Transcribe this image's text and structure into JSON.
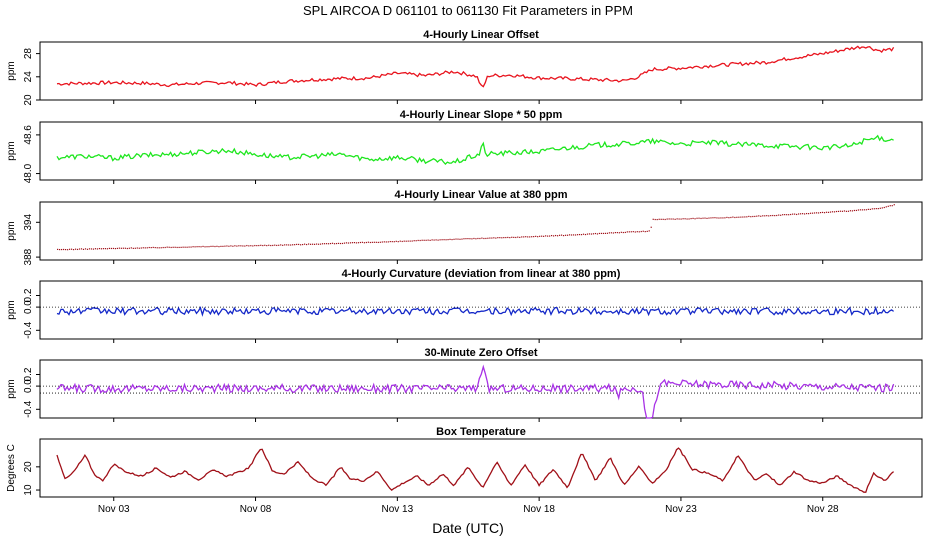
{
  "title": "SPL   AIRCOA D   061101 to 061130   Fit Parameters in PPM",
  "xlabel": "Date (UTC)",
  "colors": {
    "offset": "#e8141e",
    "slope": "#1ee61e",
    "value": "#a01018",
    "curvature": "#1428c8",
    "zero": "#a832e6",
    "temperature": "#a01018"
  },
  "chart_data": [
    {
      "type": "line",
      "title": "4-Hourly Linear Offset",
      "ylabel": "ppm",
      "x_range": [
        -0.6,
        30.5
      ],
      "ylim": [
        20,
        30
      ],
      "yticks": [
        20,
        24,
        28
      ],
      "ytick_labels": [
        "20",
        "24",
        "28"
      ],
      "xticks": [
        2,
        7,
        12,
        17,
        22,
        27
      ],
      "xtick_labels": [
        "Nov 03",
        "Nov 08",
        "Nov 13",
        "Nov 18",
        "Nov 23",
        "Nov 28"
      ],
      "x": [
        0,
        1,
        2,
        3,
        4,
        5,
        6,
        7,
        8,
        9,
        10,
        11,
        12,
        13,
        14,
        14.8,
        15,
        15.2,
        16,
        17,
        18,
        19,
        20,
        20.5,
        21,
        22,
        23,
        24,
        25,
        26,
        27,
        28,
        28.5,
        29,
        29.5
      ],
      "values": [
        22.8,
        22.9,
        23.0,
        22.9,
        22.6,
        22.9,
        23.0,
        22.6,
        23.2,
        23.5,
        23.7,
        23.8,
        24.6,
        24.2,
        24.9,
        24.1,
        21.9,
        24.2,
        24.3,
        23.8,
        23.7,
        23.5,
        23.3,
        24.0,
        25.3,
        25.5,
        25.9,
        26.2,
        26.5,
        27.3,
        28.0,
        28.9,
        29.3,
        28.5,
        28.8
      ],
      "noise": 0.3,
      "style": "line"
    },
    {
      "type": "line",
      "title": "4-Hourly Linear Slope * 50 ppm",
      "ylabel": "ppm",
      "x_range": [
        -0.6,
        30.5
      ],
      "ylim": [
        47.9,
        48.8
      ],
      "yticks": [
        48.0,
        48.6
      ],
      "ytick_labels": [
        "48.0",
        "48.6"
      ],
      "xticks": [
        2,
        7,
        12,
        17,
        22,
        27
      ],
      "xtick_labels": [
        "Nov 03",
        "Nov 08",
        "Nov 13",
        "Nov 18",
        "Nov 23",
        "Nov 28"
      ],
      "x": [
        0,
        1,
        2,
        3,
        4,
        5,
        6,
        7,
        8,
        9,
        10,
        11,
        12,
        13,
        14,
        14.9,
        15,
        15.1,
        16,
        17,
        18,
        19,
        20,
        21,
        22,
        23,
        24,
        25,
        26,
        27,
        28,
        28.5,
        29,
        29.5
      ],
      "values": [
        48.25,
        48.27,
        48.24,
        48.28,
        48.3,
        48.33,
        48.36,
        48.3,
        48.25,
        48.27,
        48.3,
        48.22,
        48.25,
        48.2,
        48.17,
        48.3,
        48.5,
        48.3,
        48.32,
        48.34,
        48.4,
        48.44,
        48.46,
        48.5,
        48.46,
        48.48,
        48.45,
        48.44,
        48.42,
        48.4,
        48.43,
        48.52,
        48.55,
        48.52
      ],
      "noise": 0.04,
      "style": "line"
    },
    {
      "type": "scatter",
      "title": "4-Hourly Linear Value at 380 ppm",
      "ylabel": "ppm",
      "x_range": [
        -0.6,
        30.5
      ],
      "ylim": [
        387.5,
        397.5
      ],
      "yticks": [
        388,
        394
      ],
      "ytick_labels": [
        "388",
        "394"
      ],
      "xticks": [
        2,
        7,
        12,
        17,
        22,
        27
      ],
      "xtick_labels": [
        "Nov 03",
        "Nov 08",
        "Nov 13",
        "Nov 18",
        "Nov 23",
        "Nov 28"
      ],
      "x": [
        0,
        2,
        4,
        6,
        8,
        10,
        12,
        14,
        16,
        18,
        20,
        20.5,
        20.9,
        21,
        22,
        24,
        26,
        28,
        29,
        29.5
      ],
      "values": [
        389.3,
        389.5,
        389.7,
        389.9,
        390.1,
        390.4,
        390.7,
        391.1,
        391.4,
        391.8,
        392.3,
        392.4,
        392.5,
        394.5,
        394.6,
        394.9,
        395.4,
        396.0,
        396.4,
        397.0
      ],
      "noise": 0.05,
      "style": "dots"
    },
    {
      "type": "line",
      "title": "4-Hourly Curvature (deviation from linear at 380 ppm)",
      "ylabel": "ppm",
      "x_range": [
        -0.6,
        30.5
      ],
      "ylim": [
        -0.55,
        0.45
      ],
      "yticks": [
        -0.4,
        0.0,
        0.2
      ],
      "ytick_labels": [
        "-0.4",
        "0.0",
        "0.2"
      ],
      "xticks": [
        2,
        7,
        12,
        17,
        22,
        27
      ],
      "xtick_labels": [
        "Nov 03",
        "Nov 08",
        "Nov 13",
        "Nov 18",
        "Nov 23",
        "Nov 28"
      ],
      "x": [
        0,
        29.5
      ],
      "values": [
        -0.07,
        -0.07
      ],
      "noise": 0.06,
      "style": "line",
      "hlines": [
        0.0
      ]
    },
    {
      "type": "line",
      "title": "30-Minute Zero Offset",
      "ylabel": "ppm",
      "x_range": [
        -0.6,
        30.5
      ],
      "ylim": [
        -0.55,
        0.45
      ],
      "yticks": [
        -0.4,
        0.0,
        0.2
      ],
      "ytick_labels": [
        "-0.4",
        "0.0",
        "0.2"
      ],
      "xticks": [
        2,
        7,
        12,
        17,
        22,
        27
      ],
      "xtick_labels": [
        "Nov 03",
        "Nov 08",
        "Nov 13",
        "Nov 18",
        "Nov 23",
        "Nov 28"
      ],
      "x": [
        0,
        14.8,
        15.0,
        15.2,
        19.6,
        19.8,
        20.0,
        20.6,
        20.8,
        21.0,
        21.2,
        21.4,
        29.5
      ],
      "values": [
        -0.04,
        -0.04,
        0.35,
        -0.04,
        -0.04,
        -0.15,
        -0.04,
        -0.04,
        -0.55,
        -0.55,
        -0.04,
        0.05,
        -0.03
      ],
      "noise": 0.07,
      "style": "line",
      "hlines": [
        0.0,
        -0.12
      ]
    },
    {
      "type": "line",
      "title": "Box Temperature",
      "ylabel": "Degrees C",
      "x_range": [
        -0.6,
        30.5
      ],
      "ylim": [
        7,
        32
      ],
      "yticks": [
        10,
        20
      ],
      "ytick_labels": [
        "10",
        "20"
      ],
      "xticks": [
        2,
        7,
        12,
        17,
        22,
        27
      ],
      "xtick_labels": [
        "Nov 03",
        "Nov 08",
        "Nov 13",
        "Nov 18",
        "Nov 23",
        "Nov 28"
      ],
      "x": [
        0,
        0.3,
        0.6,
        1.0,
        1.3,
        1.6,
        2.0,
        2.5,
        3.0,
        3.5,
        4.0,
        4.5,
        5.0,
        5.5,
        6.0,
        6.5,
        6.8,
        7.2,
        7.6,
        8.0,
        8.5,
        9.0,
        9.5,
        10.0,
        10.3,
        10.8,
        11.3,
        11.8,
        12.2,
        12.7,
        13.1,
        13.6,
        14.0,
        14.5,
        15.0,
        15.5,
        16.0,
        16.5,
        17.0,
        17.5,
        18.0,
        18.5,
        19.0,
        19.5,
        20.0,
        20.5,
        21.0,
        21.5,
        21.9,
        22.4,
        23.0,
        23.5,
        24.0,
        24.6,
        25.0,
        25.5,
        26.0,
        26.5,
        27.0,
        27.5,
        28.0,
        28.5,
        28.8,
        29.2,
        29.5
      ],
      "values": [
        25.0,
        14.5,
        18.0,
        25.0,
        17.0,
        14.0,
        21.0,
        17.5,
        16.0,
        19.5,
        15.5,
        18.0,
        14.5,
        18.5,
        16.0,
        18.0,
        20.0,
        28.5,
        18.0,
        17.0,
        22.0,
        15.0,
        12.0,
        20.0,
        15.0,
        14.0,
        18.0,
        10.0,
        13.0,
        16.0,
        12.0,
        17.0,
        12.0,
        20.0,
        11.0,
        22.0,
        12.0,
        21.0,
        12.0,
        19.0,
        11.0,
        26.0,
        14.0,
        24.0,
        12.0,
        20.0,
        13.0,
        19.0,
        28.5,
        19.0,
        17.0,
        14.0,
        25.0,
        14.0,
        17.0,
        12.0,
        18.0,
        14.0,
        13.0,
        16.0,
        12.0,
        9.0,
        17.0,
        14.0,
        18.0
      ],
      "noise": 0.4,
      "style": "line"
    }
  ]
}
